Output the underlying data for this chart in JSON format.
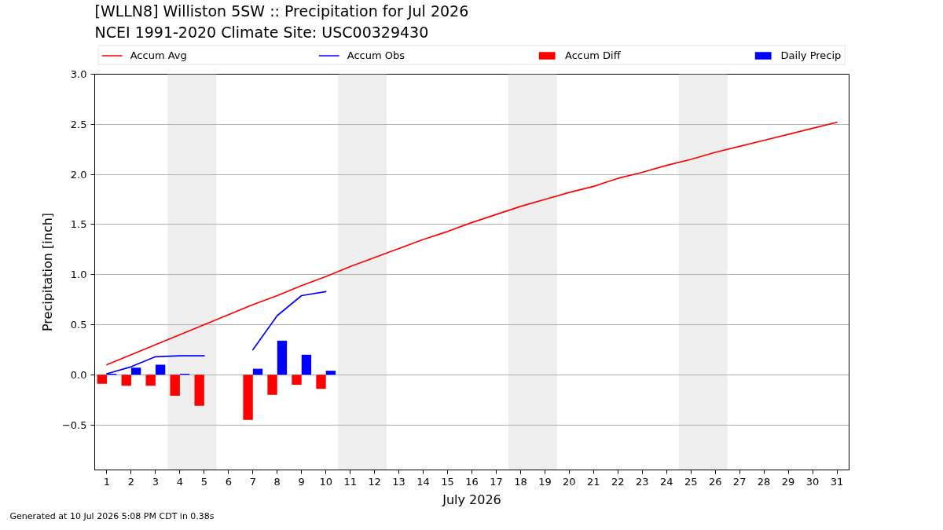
{
  "chart_data": {
    "type": "line",
    "title": "[WLLN8] Williston 5SW :: Precipitation for Jul 2026",
    "subtitle": "NCEI 1991-2020 Climate Site: USC00329430",
    "xlabel": "July 2026",
    "ylabel": "Precipitation [inch]",
    "annotations": [
      "Generated at 10 Jul 2026 5:08 PM CDT in 0.38s"
    ],
    "x": [
      1,
      2,
      3,
      4,
      5,
      6,
      7,
      8,
      9,
      10,
      11,
      12,
      13,
      14,
      15,
      16,
      17,
      18,
      19,
      20,
      21,
      22,
      23,
      24,
      25,
      26,
      27,
      28,
      29,
      30,
      31
    ],
    "series": [
      {
        "name": "Accum Avg",
        "color": "#ff0000",
        "values": [
          0.1,
          0.2,
          0.3,
          0.4,
          0.5,
          0.6,
          0.7,
          0.79,
          0.89,
          0.98,
          1.08,
          1.17,
          1.26,
          1.35,
          1.43,
          1.52,
          1.6,
          1.68,
          1.75,
          1.82,
          1.88,
          1.96,
          2.02,
          2.09,
          2.15,
          2.22,
          2.28,
          2.34,
          2.4,
          2.46,
          2.52
        ]
      },
      {
        "name": "Accum Obs",
        "color": "#0000ff",
        "values": [
          0.01,
          0.08,
          0.18,
          0.19,
          0.19,
          null,
          0.25,
          0.59,
          0.79,
          0.83,
          null,
          null,
          null,
          null,
          null,
          null,
          null,
          null,
          null,
          null,
          null,
          null,
          null,
          null,
          null,
          null,
          null,
          null,
          null,
          null,
          null
        ]
      },
      {
        "name": "Accum Diff",
        "type": "bar",
        "color": "#ff0000",
        "values": [
          -0.09,
          -0.11,
          -0.11,
          -0.21,
          -0.31,
          null,
          -0.45,
          -0.2,
          -0.1,
          -0.14,
          null,
          null,
          null,
          null,
          null,
          null,
          null,
          null,
          null,
          null,
          null,
          null,
          null,
          null,
          null,
          null,
          null,
          null,
          null,
          null,
          null
        ]
      },
      {
        "name": "Daily Precip",
        "type": "bar",
        "color": "#0000ff",
        "values": [
          0.01,
          0.07,
          0.1,
          0.01,
          null,
          null,
          0.06,
          0.34,
          0.2,
          0.04,
          null,
          null,
          null,
          null,
          null,
          null,
          null,
          null,
          null,
          null,
          null,
          null,
          null,
          null,
          null,
          null,
          null,
          null,
          null,
          null,
          null
        ]
      }
    ],
    "xlim": [
      0.5,
      31.5
    ],
    "xticks": [
      1,
      2,
      3,
      4,
      5,
      6,
      7,
      8,
      9,
      10,
      11,
      12,
      13,
      14,
      15,
      16,
      17,
      18,
      19,
      20,
      21,
      22,
      23,
      24,
      25,
      26,
      27,
      28,
      29,
      30,
      31
    ],
    "ylim": [
      -0.95,
      3.0
    ],
    "yticks": [
      {
        "value": -0.5,
        "label": "−0.5"
      },
      {
        "value": 0,
        "label": "0.0"
      },
      0.5,
      {
        "value": 1,
        "label": "1.0"
      },
      1.5,
      {
        "value": 2,
        "label": "2.0"
      },
      2.5,
      {
        "value": 3,
        "label": "3.0"
      }
    ],
    "bands": [
      {
        "axis": "x",
        "from": 3.5,
        "to": 5.5,
        "color": "#eeeeee"
      },
      {
        "axis": "x",
        "from": 10.5,
        "to": 12.5,
        "color": "#eeeeee"
      },
      {
        "axis": "x",
        "from": 17.5,
        "to": 19.5,
        "color": "#eeeeee"
      },
      {
        "axis": "x",
        "from": 24.5,
        "to": 26.5,
        "color": "#eeeeee"
      }
    ],
    "grid": "y",
    "legend": "top"
  }
}
